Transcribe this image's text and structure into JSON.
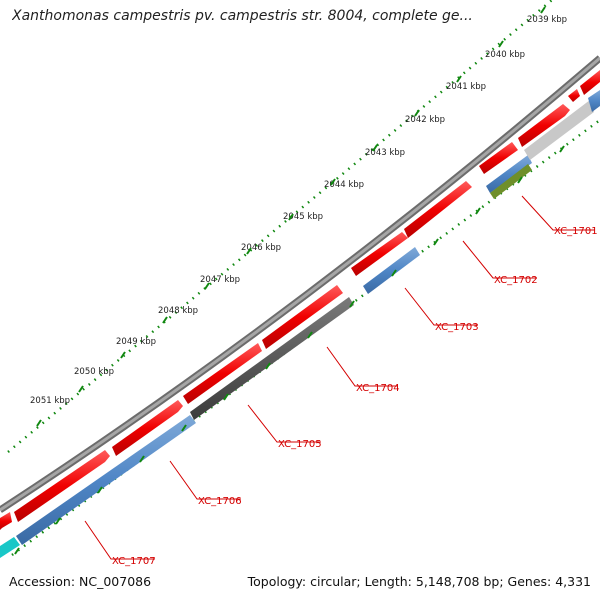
{
  "title": "Xanthomonas campestris pv. campestris str. 8004, complete ge...",
  "footer": {
    "accession": "Accession: NC_007086",
    "summary": "Topology: circular; Length: 5,148,708 bp; Genes: 4,331"
  },
  "ruler_labels": [
    "2039 kbp",
    "2040 kbp",
    "2041 kbp",
    "2042 kbp",
    "2043 kbp",
    "2044 kbp",
    "2045 kbp",
    "2046 kbp",
    "2047 kbp",
    "2048 kbp",
    "2049 kbp",
    "2050 kbp",
    "2051 kbp"
  ],
  "gene_labels": [
    "XC_1701",
    "XC_1702",
    "XC_1703",
    "XC_1704",
    "XC_1705",
    "XC_1706",
    "XC_1707"
  ],
  "colors": {
    "cds": "#f00000",
    "gene": "#4f86c6",
    "backbone": "#8a8a8a",
    "dark_feature": "#5a5a5a",
    "light_feature": "#c8c8c8",
    "olive_feature": "#6f8f2a",
    "cyan_feature": "#19c7c7",
    "ticks": "#118811",
    "label_red": "#d40000"
  }
}
